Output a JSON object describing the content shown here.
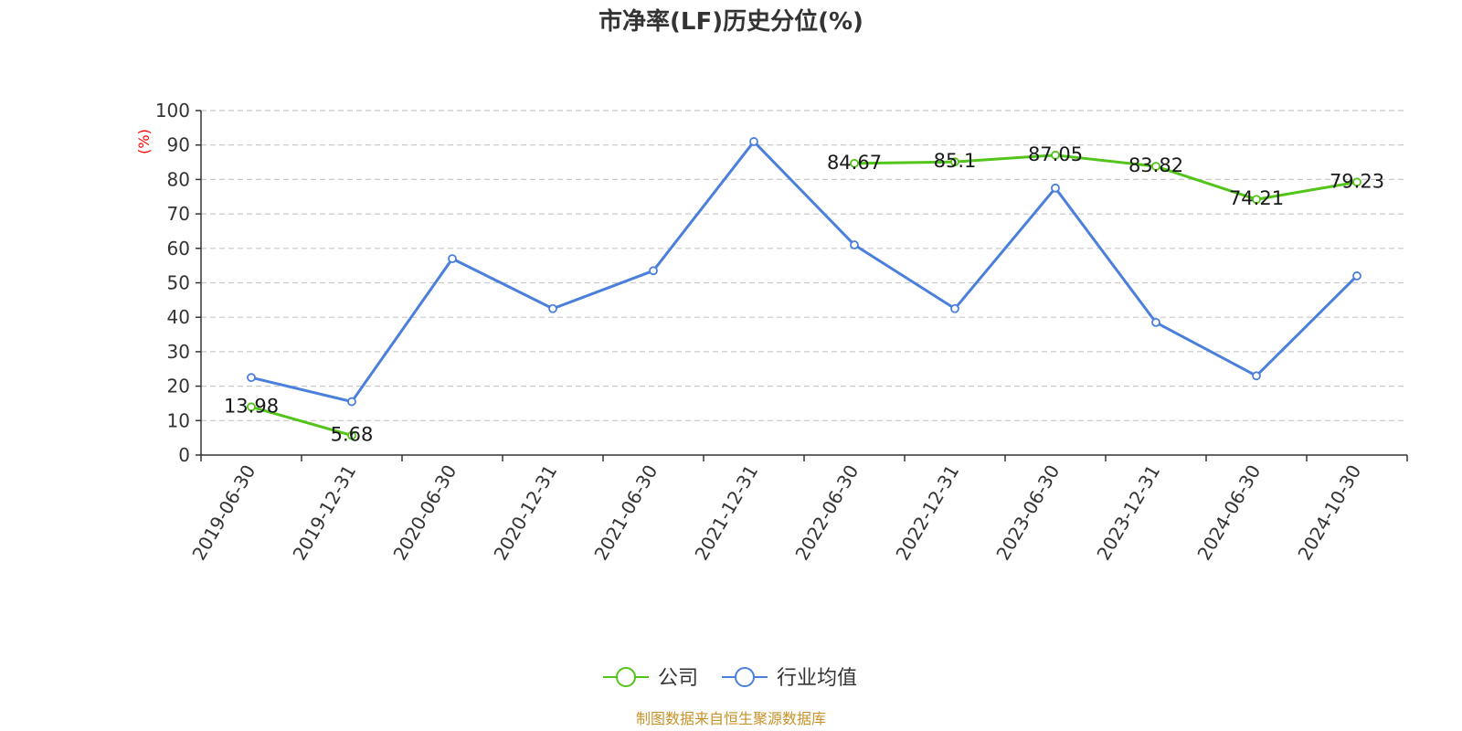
{
  "title": "市净率(LF)历史分位(%)",
  "source": "制图数据来自恒生聚源数据库",
  "chart_data": {
    "type": "line",
    "title": "市净率(LF)历史分位(%)",
    "ylabel": "(%)",
    "xlabel": "",
    "ylim": [
      0,
      100
    ],
    "yticks": [
      0,
      10,
      20,
      30,
      40,
      50,
      60,
      70,
      80,
      90,
      100
    ],
    "grid": true,
    "legend_position": "bottom-center",
    "categories": [
      "2019-06-30",
      "2019-12-31",
      "2020-06-30",
      "2020-12-31",
      "2021-06-30",
      "2021-12-31",
      "2022-06-30",
      "2022-12-31",
      "2023-06-30",
      "2023-12-31",
      "2024-06-30",
      "2024-10-30"
    ],
    "series": [
      {
        "name": "公司",
        "color": "#52c41a",
        "show_labels": true,
        "labels": [
          "13.98",
          "5.68",
          null,
          null,
          null,
          null,
          "84.67",
          "85.1",
          "87.05",
          "83.82",
          "74.21",
          "79.23"
        ],
        "values": [
          13.98,
          5.68,
          null,
          null,
          null,
          null,
          84.67,
          85.1,
          87.05,
          83.82,
          74.21,
          79.23
        ]
      },
      {
        "name": "行业均值",
        "color": "#4a7fdc",
        "show_labels": false,
        "values": [
          22.5,
          15.5,
          57,
          42.5,
          53.5,
          91,
          61,
          42.5,
          77.5,
          38.5,
          23,
          52
        ]
      }
    ]
  }
}
